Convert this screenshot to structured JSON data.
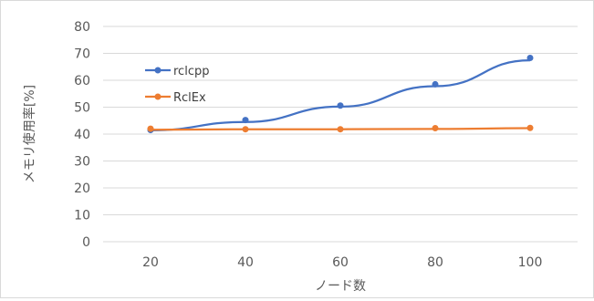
{
  "chart_data": {
    "type": "line",
    "title": "",
    "xlabel": "ノード数",
    "ylabel": "メモリ使用率[%]",
    "categories": [
      "20",
      "40",
      "60",
      "80",
      "100"
    ],
    "ylim": [
      0,
      80
    ],
    "yticks": [
      "0",
      "10",
      "20",
      "30",
      "40",
      "50",
      "60",
      "70",
      "80"
    ],
    "grid": true,
    "legend_position": "top-left",
    "series": [
      {
        "name": "rclcpp",
        "color": "#4472c4",
        "values": [
          41.5,
          45.2,
          50.6,
          58.5,
          68.3
        ],
        "trend": [
          41.4,
          44.5,
          50.2,
          57.8,
          67.4
        ]
      },
      {
        "name": "RclEx",
        "color": "#ed7d31",
        "values": [
          42.0,
          41.8,
          41.8,
          42.2,
          42.3
        ],
        "trend": [
          41.6,
          41.8,
          41.8,
          41.9,
          42.2
        ]
      }
    ]
  }
}
